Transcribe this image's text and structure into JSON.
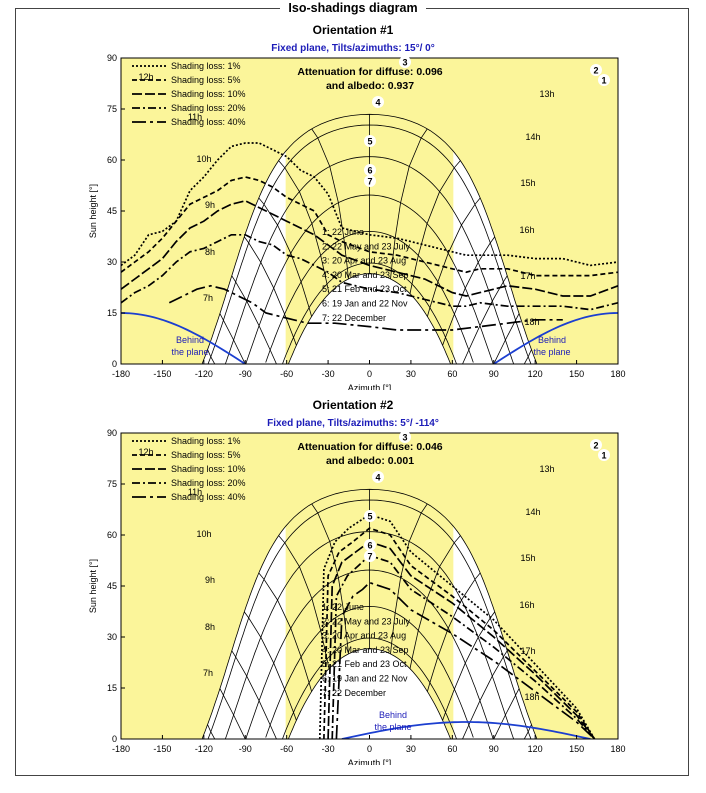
{
  "title": "Iso-shadings diagram",
  "chart_data": [
    {
      "type": "line",
      "orientation_title": "Orientation #1",
      "subtitle": "Fixed plane, Tilts/azimuths: 15°/ 0°",
      "attenuation_line1": "Attenuation for diffuse: 0.096",
      "attenuation_line2": "and albedo: 0.937",
      "xlabel": "Azimuth [°]",
      "ylabel": "Sun height [°]",
      "xlim": [
        -180,
        180
      ],
      "ylim": [
        0,
        90
      ],
      "xticks": [
        -180,
        -150,
        -120,
        -90,
        -60,
        -30,
        0,
        30,
        60,
        90,
        120,
        150,
        180
      ],
      "yticks": [
        0,
        15,
        30,
        45,
        60,
        75,
        90
      ],
      "legend": [
        "Shading loss: 1%",
        "Shading loss: 5%",
        "Shading loss: 10%",
        "Shading loss: 20%",
        "Shading loss: 40%"
      ],
      "legend_position": "top-left",
      "dates": [
        "1: 22 June",
        "2: 22 May and 23 July",
        "3: 20 Apr and 23 Aug",
        "4: 20 Mar and 23 Sep",
        "5: 21 Feb and 23 Oct",
        "6: 19 Jan and 22 Nov",
        "7: 22 December"
      ],
      "hour_labels": [
        "7h",
        "8h",
        "9h",
        "10h",
        "11h",
        "12h",
        "13h",
        "14h",
        "15h",
        "16h",
        "17h",
        "18h"
      ],
      "behind_label": "Behind the plane",
      "sun_paths_max_height": [
        82,
        80,
        75,
        67,
        58,
        54,
        52
      ],
      "behind_plane_curve": {
        "x": [
          -180,
          -150,
          -120,
          -90,
          -60
        ],
        "y": [
          15,
          13,
          8,
          0,
          0
        ]
      },
      "shading_series": [
        {
          "name": "Shading loss: 1%",
          "x": [
            -180,
            -170,
            -160,
            -150,
            -140,
            -130,
            -120,
            -110,
            -100,
            -90,
            -80,
            -70,
            -60,
            -50,
            -40,
            -30,
            -20,
            0,
            20,
            40,
            60,
            70,
            80,
            100,
            120,
            140,
            160,
            180
          ],
          "y": [
            29,
            32,
            38,
            39,
            42,
            51,
            55,
            60,
            64,
            65,
            65,
            63,
            61,
            57,
            55,
            50,
            40,
            38,
            37,
            35,
            33,
            32,
            32,
            32,
            31,
            31,
            29,
            30
          ]
        },
        {
          "name": "Shading loss: 5%",
          "x": [
            -180,
            -170,
            -160,
            -150,
            -140,
            -130,
            -120,
            -110,
            -100,
            -90,
            -80,
            -70,
            -60,
            -50,
            -40,
            -30,
            -20,
            0,
            20,
            40,
            60,
            70,
            80,
            100,
            120,
            140,
            160,
            180
          ],
          "y": [
            27,
            30,
            33,
            37,
            42,
            47,
            49,
            51,
            54,
            55,
            54,
            52,
            49,
            47,
            45,
            38,
            36,
            33,
            32,
            30,
            28,
            27,
            28,
            28,
            26,
            26,
            26,
            27
          ]
        },
        {
          "name": "Shading loss: 10%",
          "x": [
            -180,
            -170,
            -160,
            -150,
            -140,
            -130,
            -120,
            -110,
            -100,
            -90,
            -80,
            -70,
            -60,
            -50,
            -40,
            -30,
            -20,
            0,
            20,
            40,
            60,
            70,
            80,
            100,
            120,
            140,
            160,
            180
          ],
          "y": [
            22,
            25,
            28,
            31,
            36,
            40,
            42,
            45,
            47,
            48,
            46,
            44,
            42,
            40,
            38,
            35,
            32,
            29,
            27,
            25,
            21,
            20,
            21,
            23,
            22,
            20,
            20,
            23
          ]
        },
        {
          "name": "Shading loss: 20%",
          "x": [
            -180,
            -170,
            -160,
            -150,
            -140,
            -130,
            -120,
            -110,
            -100,
            -90,
            -80,
            -70,
            -60,
            -50,
            -40,
            -30,
            -20,
            0,
            20,
            40,
            60,
            70,
            80,
            100,
            120,
            140,
            160,
            180
          ],
          "y": [
            18,
            21,
            23,
            26,
            30,
            33,
            34,
            36,
            38,
            38,
            36,
            35,
            32,
            31,
            29,
            27,
            24,
            22,
            21,
            19,
            17,
            17,
            18,
            17,
            17,
            17,
            16,
            18
          ]
        },
        {
          "name": "Shading loss: 40%",
          "x": [
            -145,
            -135,
            -125,
            -115,
            -105,
            -95,
            -85,
            -75,
            -65,
            -55,
            -45,
            -35,
            -25,
            0,
            20,
            40,
            60,
            80,
            100,
            120,
            140
          ],
          "y": [
            18,
            20,
            22,
            23,
            22,
            20,
            18,
            15,
            14,
            13,
            12,
            12,
            12,
            11,
            10,
            10,
            10,
            11,
            12,
            13,
            13
          ]
        }
      ]
    },
    {
      "type": "line",
      "orientation_title": "Orientation #2",
      "subtitle": "Fixed plane, Tilts/azimuths: 5°/ -114°",
      "attenuation_line1": "Attenuation for diffuse: 0.046",
      "attenuation_line2": "and albedo: 0.001",
      "xlabel": "Azimuth [°]",
      "ylabel": "Sun height [°]",
      "xlim": [
        -180,
        180
      ],
      "ylim": [
        0,
        90
      ],
      "xticks": [
        -180,
        -150,
        -120,
        -90,
        -60,
        -30,
        0,
        30,
        60,
        90,
        120,
        150,
        180
      ],
      "yticks": [
        0,
        15,
        30,
        45,
        60,
        75,
        90
      ],
      "legend": [
        "Shading loss: 1%",
        "Shading loss: 5%",
        "Shading loss: 10%",
        "Shading loss: 20%",
        "Shading loss: 40%"
      ],
      "legend_position": "top-left",
      "dates": [
        "1: 22 June",
        "2: 22 May and 23 July",
        "3: 20 Apr and 23 Aug",
        "4: 20 Mar and 23 Sep",
        "5: 21 Feb and 23 Oct",
        "6: 19 Jan and 22 Nov",
        "7: 22 December"
      ],
      "hour_labels": [
        "7h",
        "8h",
        "9h",
        "10h",
        "11h",
        "12h",
        "13h",
        "14h",
        "15h",
        "16h",
        "17h",
        "18h"
      ],
      "behind_label": "Behind the plane",
      "sun_paths_max_height": [
        82,
        80,
        75,
        67,
        58,
        54,
        52
      ],
      "behind_plane_curve": {
        "x": [
          -20,
          0,
          30,
          60,
          90,
          120,
          155
        ],
        "y": [
          0,
          2,
          4,
          5,
          4,
          2,
          0
        ]
      },
      "shading_series": [
        {
          "name": "Shading loss: 1%",
          "x": [
            -36,
            -33,
            -25,
            -15,
            0,
            15,
            30,
            60,
            90,
            120,
            150,
            163
          ],
          "y": [
            0,
            50,
            58,
            62,
            66,
            64,
            55,
            45,
            35,
            22,
            9,
            0
          ]
        },
        {
          "name": "Shading loss: 5%",
          "x": [
            -33,
            -30,
            -22,
            -12,
            0,
            15,
            30,
            60,
            90,
            120,
            150,
            163
          ],
          "y": [
            0,
            48,
            55,
            58,
            62,
            60,
            51,
            42,
            32,
            20,
            8,
            0
          ]
        },
        {
          "name": "Shading loss: 10%",
          "x": [
            -30,
            -27,
            -20,
            -10,
            0,
            15,
            30,
            60,
            90,
            120,
            150,
            163
          ],
          "y": [
            0,
            45,
            52,
            55,
            58,
            56,
            48,
            40,
            30,
            19,
            7,
            0
          ]
        },
        {
          "name": "Shading loss: 20%",
          "x": [
            -27,
            -24,
            -16,
            -8,
            0,
            15,
            30,
            60,
            90,
            120,
            150,
            163
          ],
          "y": [
            0,
            42,
            48,
            51,
            54,
            52,
            44,
            36,
            27,
            17,
            6,
            0
          ]
        },
        {
          "name": "Shading loss: 40%",
          "x": [
            -24,
            -20,
            -12,
            -5,
            0,
            15,
            30,
            60,
            90,
            120,
            150,
            163
          ],
          "y": [
            0,
            36,
            42,
            44,
            46,
            44,
            38,
            31,
            23,
            14,
            5,
            0
          ]
        }
      ]
    }
  ]
}
